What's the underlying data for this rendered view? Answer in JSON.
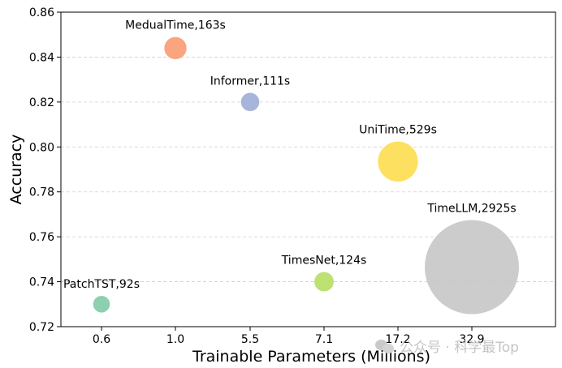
{
  "chart_data": {
    "type": "bubble",
    "xlabel": "Trainable Parameters (Millions)",
    "ylabel": "Accuracy",
    "categories": [
      "0.6",
      "1.0",
      "5.5",
      "7.1",
      "17.2",
      "32.9"
    ],
    "ylim": [
      0.72,
      0.86
    ],
    "yticks": [
      "0.72",
      "0.74",
      "0.76",
      "0.78",
      "0.80",
      "0.82",
      "0.84",
      "0.86"
    ],
    "grid": "horizontal-dashed",
    "points": [
      {
        "name": "PatchTST",
        "label": "PatchTST,92s",
        "params": "0.6",
        "accuracy": 0.73,
        "time_s": 92,
        "color": "#7fcba6"
      },
      {
        "name": "MedualTime",
        "label": "MedualTime,163s",
        "params": "1.0",
        "accuracy": 0.844,
        "time_s": 163,
        "color": "#f99a72"
      },
      {
        "name": "Informer",
        "label": "Informer,111s",
        "params": "5.5",
        "accuracy": 0.82,
        "time_s": 111,
        "color": "#9fadd6"
      },
      {
        "name": "TimesNet",
        "label": "TimesNet,124s",
        "params": "7.1",
        "accuracy": 0.74,
        "time_s": 124,
        "color": "#b6de63"
      },
      {
        "name": "UniTime",
        "label": "UniTime,529s",
        "params": "17.2",
        "accuracy": 0.7935,
        "time_s": 529,
        "color": "#fedd4f"
      },
      {
        "name": "TimeLLM",
        "label": "TimeLLM,2925s",
        "params": "32.9",
        "accuracy": 0.7465,
        "time_s": 2925,
        "color": "#c6c6c6"
      }
    ]
  },
  "watermark": {
    "text": "公众号 · 科学最Top",
    "icon": "wechat-icon"
  }
}
